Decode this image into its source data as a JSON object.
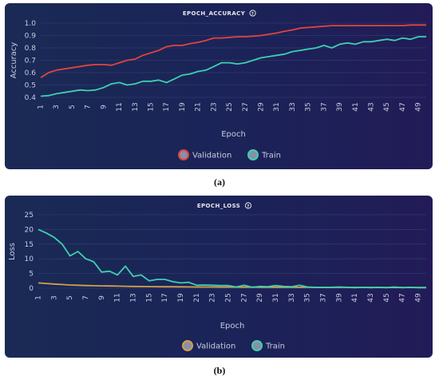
{
  "chart_data": [
    {
      "type": "line",
      "title": "EPOCH_ACCURACY",
      "title_icon": "help-circle-icon",
      "xlabel": "Epoch",
      "ylabel": "Accuracy",
      "ylim": [
        0.4,
        1.0
      ],
      "yticks": [
        "1.0",
        "0.9",
        "0.8",
        "0.7",
        "0.6",
        "0.5",
        "0.4"
      ],
      "ytick_values": [
        1.0,
        0.9,
        0.8,
        0.7,
        0.6,
        0.5,
        0.4
      ],
      "xtick_labels": [
        "1",
        "3",
        "5",
        "7",
        "9",
        "11",
        "13",
        "15",
        "17",
        "19",
        "21",
        "23",
        "25",
        "27",
        "29",
        "31",
        "33",
        "35",
        "37",
        "39",
        "41",
        "43",
        "45",
        "47",
        "49"
      ],
      "x": [
        1,
        2,
        3,
        4,
        5,
        6,
        7,
        8,
        9,
        10,
        11,
        12,
        13,
        14,
        15,
        16,
        17,
        18,
        19,
        20,
        21,
        22,
        23,
        24,
        25,
        26,
        27,
        28,
        29,
        30,
        31,
        32,
        33,
        34,
        35,
        36,
        37,
        38,
        39,
        40,
        41,
        42,
        43,
        44,
        45,
        46,
        47,
        48,
        49,
        50
      ],
      "grid": true,
      "legend_position": "bottom",
      "series": [
        {
          "name": "Validation",
          "color": "#e0443e",
          "values": [
            0.56,
            0.6,
            0.62,
            0.63,
            0.64,
            0.65,
            0.66,
            0.665,
            0.665,
            0.66,
            0.68,
            0.7,
            0.71,
            0.74,
            0.76,
            0.78,
            0.81,
            0.82,
            0.82,
            0.835,
            0.845,
            0.86,
            0.88,
            0.88,
            0.885,
            0.89,
            0.89,
            0.895,
            0.9,
            0.91,
            0.92,
            0.935,
            0.945,
            0.96,
            0.965,
            0.97,
            0.975,
            0.98,
            0.98,
            0.98,
            0.98,
            0.98,
            0.98,
            0.98,
            0.98,
            0.98,
            0.98,
            0.985,
            0.985,
            0.985
          ]
        },
        {
          "name": "Train",
          "color": "#3ecfb0",
          "values": [
            0.41,
            0.415,
            0.43,
            0.44,
            0.45,
            0.46,
            0.455,
            0.46,
            0.48,
            0.51,
            0.52,
            0.5,
            0.51,
            0.53,
            0.53,
            0.54,
            0.52,
            0.55,
            0.58,
            0.59,
            0.61,
            0.62,
            0.65,
            0.68,
            0.68,
            0.67,
            0.68,
            0.7,
            0.72,
            0.73,
            0.74,
            0.75,
            0.77,
            0.78,
            0.79,
            0.8,
            0.82,
            0.8,
            0.83,
            0.84,
            0.83,
            0.85,
            0.85,
            0.86,
            0.87,
            0.86,
            0.88,
            0.87,
            0.89,
            0.89
          ]
        }
      ]
    },
    {
      "type": "line",
      "title": "EPOCH_LOSS",
      "title_icon": "help-circle-icon",
      "xlabel": "Epoch",
      "ylabel": "Loss",
      "ylim": [
        0,
        25
      ],
      "yticks": [
        "25",
        "20",
        "15",
        "10",
        "5",
        "0"
      ],
      "ytick_values": [
        25,
        20,
        15,
        10,
        5,
        0
      ],
      "xtick_labels": [
        "1",
        "3",
        "5",
        "7",
        "9",
        "11",
        "13",
        "15",
        "17",
        "19",
        "21",
        "23",
        "25",
        "27",
        "29",
        "31",
        "33",
        "35",
        "37",
        "39",
        "41",
        "43",
        "45",
        "47",
        "49"
      ],
      "x": [
        1,
        2,
        3,
        4,
        5,
        6,
        7,
        8,
        9,
        10,
        11,
        12,
        13,
        14,
        15,
        16,
        17,
        18,
        19,
        20,
        21,
        22,
        23,
        24,
        25,
        26,
        27,
        28,
        29,
        30,
        31,
        32,
        33,
        34,
        35,
        36,
        37,
        38,
        39,
        40,
        41,
        42,
        43,
        44,
        45,
        46,
        47,
        48,
        49,
        50
      ],
      "grid": true,
      "legend_position": "bottom",
      "series": [
        {
          "name": "Validation",
          "color": "#d4a04a",
          "values": [
            1.8,
            1.6,
            1.4,
            1.25,
            1.1,
            1.0,
            0.9,
            0.85,
            0.8,
            0.75,
            0.7,
            0.65,
            0.6,
            0.58,
            0.55,
            0.52,
            0.5,
            0.48,
            0.46,
            0.44,
            0.42,
            0.41,
            0.4,
            0.38,
            0.37,
            0.36,
            0.35,
            0.34,
            0.33,
            0.32,
            0.31,
            0.3,
            0.3,
            0.29,
            0.29,
            0.28,
            0.28,
            0.27,
            0.27,
            0.27,
            0.26,
            0.26,
            0.26,
            0.25,
            0.25,
            0.25,
            0.25,
            0.25,
            0.24,
            0.24
          ]
        },
        {
          "name": "Train",
          "color": "#3ecfb0",
          "values": [
            20,
            18.8,
            17.3,
            15,
            11,
            12.5,
            10,
            9,
            5.5,
            5.8,
            4.5,
            7.5,
            4,
            4.5,
            2.5,
            3,
            3,
            2.2,
            1.8,
            2,
            1,
            1.1,
            1.0,
            0.9,
            0.9,
            0.4,
            1.0,
            0.3,
            0.6,
            0.5,
            0.9,
            0.6,
            0.5,
            1.0,
            0.4,
            0.3,
            0.3,
            0.3,
            0.4,
            0.3,
            0.2,
            0.3,
            0.2,
            0.3,
            0.2,
            0.4,
            0.2,
            0.3,
            0.2,
            0.2
          ]
        }
      ]
    }
  ],
  "captions": {
    "a": "(a)",
    "b": "(b)"
  },
  "colors": {
    "panel_bg_start": "#1a2a55",
    "panel_bg_end": "#221b57",
    "grid": "#2f3a6e"
  }
}
